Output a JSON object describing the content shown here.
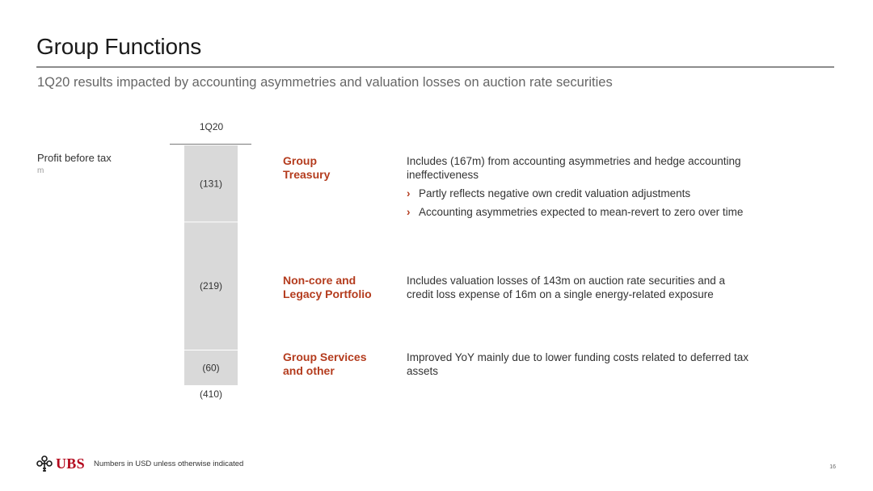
{
  "title": "Group Functions",
  "subtitle": "1Q20 results impacted by accounting asymmetries and valuation losses on auction rate securities",
  "row_label": "Profit before tax",
  "unit_label": "m",
  "chart_data": {
    "type": "bar",
    "stacked": true,
    "categories": [
      "1Q20"
    ],
    "series": [
      {
        "name": "Group Treasury",
        "values": [
          -131
        ],
        "label": "(131)"
      },
      {
        "name": "Non-core and Legacy Portfolio",
        "values": [
          -219
        ],
        "label": "(219)"
      },
      {
        "name": "Group Services and other",
        "values": [
          -60
        ],
        "label": "(60)"
      }
    ],
    "total": -410,
    "total_label": "(410)",
    "colors": {
      "bar_fill": "#d9d9d9",
      "separator": "#ffffff"
    }
  },
  "segments": [
    {
      "name_line1": "Group",
      "name_line2": "Treasury",
      "description": "Includes (167m) from accounting asymmetries and hedge accounting ineffectiveness",
      "bullets": [
        "Partly reflects negative own credit valuation adjustments",
        "Accounting asymmetries expected to mean-revert to zero over time"
      ]
    },
    {
      "name_line1": "Non-core and",
      "name_line2": "Legacy Portfolio",
      "description": "Includes valuation losses of 143m on auction rate securities and a credit loss expense of 16m on a single energy-related exposure"
    },
    {
      "name_line1": "Group Services",
      "name_line2": "and other",
      "description": "Improved YoY mainly due to lower funding costs related to deferred tax assets"
    }
  ],
  "footer": {
    "logo_text": "UBS",
    "note": "Numbers in USD unless otherwise indicated",
    "page_number": "16"
  },
  "colors": {
    "accent": "#b43c1e",
    "logo_red": "#b40a1e",
    "rule": "#8c8c8c",
    "subtitle": "#666666"
  },
  "icons": {
    "logo": "ubs-three-keys-icon",
    "bullet": "chevron-right-icon"
  }
}
